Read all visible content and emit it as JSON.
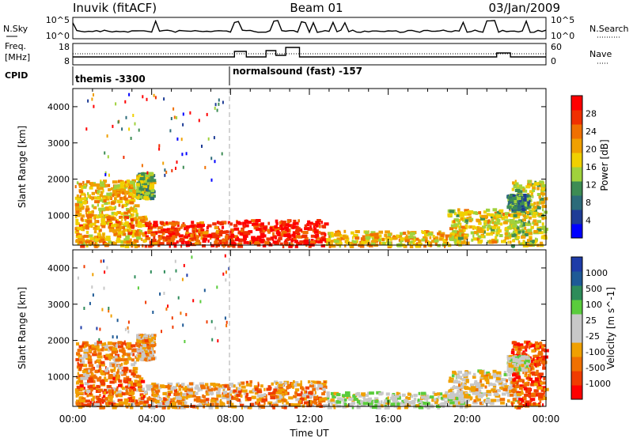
{
  "header": {
    "radar": "Inuvik (fitACF)",
    "beam": "Beam 01",
    "date": "03/Jan/2009"
  },
  "noise_panel": {
    "left_label": "N.Sky",
    "left_ticks": [
      "10^5",
      "10^0"
    ],
    "right_label": "N.Search",
    "right_ticks": [
      "10^5",
      "10^0"
    ]
  },
  "freq_panel": {
    "left_label_1": "Freq.",
    "left_label_2": "[MHz]",
    "left_ticks": [
      "18",
      "8"
    ],
    "right_label": "Nave",
    "right_ticks": [
      "60",
      "0"
    ]
  },
  "cpid_panel": {
    "label": "CPID",
    "programs": [
      "themis -3300",
      "normalsound (fast) -157"
    ]
  },
  "chart_data": [
    {
      "type": "heatmap",
      "title": "",
      "xlabel": "Time UT",
      "ylabel": "Slant Range [km]",
      "x_ticks": [
        "00:00",
        "04:00",
        "08:00",
        "12:00",
        "16:00",
        "20:00",
        "00:00"
      ],
      "y_ticks": [
        "1000",
        "2000",
        "3000",
        "4000"
      ],
      "xlim_hours": [
        0,
        24
      ],
      "ylim_km": [
        180,
        4500
      ],
      "colorbar": {
        "label": "Power [dB]",
        "ticks": [
          "4",
          "8",
          "12",
          "16",
          "20",
          "24",
          "28"
        ],
        "range": [
          0,
          30
        ],
        "colors": [
          "#0000ff",
          "#1e3c96",
          "#2c6b7a",
          "#3d8c54",
          "#a0d23c",
          "#f0d000",
          "#f0a000",
          "#f07000",
          "#f03000",
          "#ff0000"
        ]
      },
      "regions": [
        {
          "t": [
            0.1,
            3.2
          ],
          "r": [
            1000,
            2000
          ],
          "level": 0.6
        },
        {
          "t": [
            0.1,
            3.6
          ],
          "r": [
            180,
            1000
          ],
          "level": 0.65
        },
        {
          "t": [
            3.2,
            4.0
          ],
          "r": [
            1500,
            2200
          ],
          "level": 0.45
        },
        {
          "t": [
            3.6,
            8.0
          ],
          "r": [
            180,
            850
          ],
          "level": 0.85
        },
        {
          "t": [
            8.0,
            12.8
          ],
          "r": [
            180,
            900
          ],
          "level": 0.9
        },
        {
          "t": [
            12.8,
            20.0
          ],
          "r": [
            180,
            600
          ],
          "level": 0.6
        },
        {
          "t": [
            19.0,
            22.5
          ],
          "r": [
            300,
            1200
          ],
          "level": 0.55
        },
        {
          "t": [
            22.2,
            23.9
          ],
          "r": [
            180,
            2000
          ],
          "level": 0.5
        },
        {
          "t": [
            22.0,
            23.0
          ],
          "r": [
            1200,
            1600
          ],
          "level": 0.3
        }
      ]
    },
    {
      "type": "heatmap",
      "title": "",
      "xlabel": "Time UT",
      "ylabel": "Slant Range [km]",
      "x_ticks": [
        "00:00",
        "04:00",
        "08:00",
        "12:00",
        "16:00",
        "20:00",
        "00:00"
      ],
      "y_ticks": [
        "1000",
        "2000",
        "3000",
        "4000"
      ],
      "xlim_hours": [
        0,
        24
      ],
      "ylim_km": [
        180,
        4500
      ],
      "colorbar": {
        "label": "Velocity [m s^-1]",
        "ticks": [
          "1000",
          "500",
          "100",
          "25",
          "-25",
          "-100",
          "-500",
          "-1000"
        ],
        "range": [
          -1200,
          1200
        ],
        "colors": [
          "#1e3ca8",
          "#1e5a96",
          "#2e8c5a",
          "#5acc3c",
          "#c8c8c8",
          "#c8c8c8",
          "#f0a000",
          "#f07000",
          "#f03c00",
          "#ff0000"
        ]
      },
      "regions": [
        {
          "t": [
            0.1,
            3.2
          ],
          "r": [
            1000,
            2000
          ],
          "level": 0.3
        },
        {
          "t": [
            0.1,
            3.6
          ],
          "r": [
            180,
            1000
          ],
          "level": 0.25
        },
        {
          "t": [
            3.2,
            4.0
          ],
          "r": [
            1500,
            2200
          ],
          "level": 0.35
        },
        {
          "t": [
            3.6,
            8.0
          ],
          "r": [
            180,
            850
          ],
          "level": 0.35
        },
        {
          "t": [
            8.0,
            12.8
          ],
          "r": [
            180,
            900
          ],
          "level": 0.3
        },
        {
          "t": [
            12.8,
            20.0
          ],
          "r": [
            180,
            600
          ],
          "level": 0.5
        },
        {
          "t": [
            19.0,
            22.5
          ],
          "r": [
            300,
            1200
          ],
          "level": 0.45
        },
        {
          "t": [
            22.2,
            23.9
          ],
          "r": [
            180,
            2000
          ],
          "level": 0.2
        },
        {
          "t": [
            22.0,
            23.0
          ],
          "r": [
            1200,
            1600
          ],
          "level": 0.5
        }
      ]
    }
  ]
}
